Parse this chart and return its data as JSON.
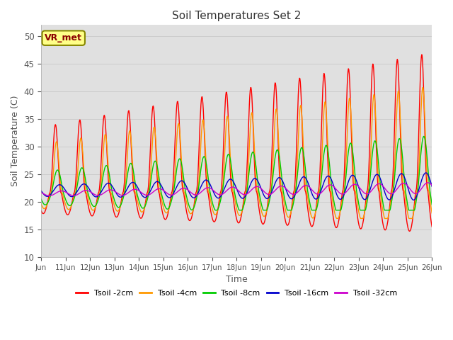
{
  "title": "Soil Temperatures Set 2",
  "xlabel": "Time",
  "ylabel": "Soil Temperature (C)",
  "ylim": [
    10,
    52
  ],
  "yticks": [
    10,
    15,
    20,
    25,
    30,
    35,
    40,
    45,
    50
  ],
  "annotation": "VR_met",
  "series_colors": [
    "#ff0000",
    "#ff9900",
    "#00cc00",
    "#0000cc",
    "#cc00cc"
  ],
  "series_labels": [
    "Tsoil -2cm",
    "Tsoil -4cm",
    "Tsoil -8cm",
    "Tsoil -16cm",
    "Tsoil -32cm"
  ],
  "bg_color": "#e0e0e0",
  "start_day": 10,
  "end_day": 26,
  "n_points": 960
}
